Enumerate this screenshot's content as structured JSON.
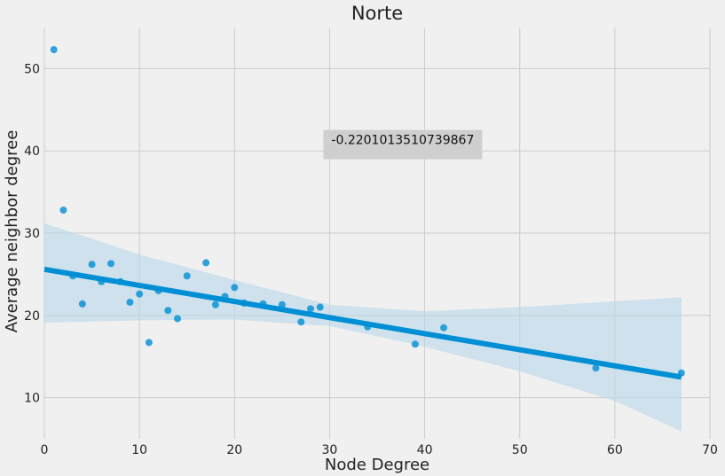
{
  "chart_data": {
    "type": "scatter",
    "title": "Norte",
    "xlabel": "Node Degree",
    "ylabel": "Average neighbor degree",
    "xlim": [
      0,
      70
    ],
    "ylim": [
      5,
      55
    ],
    "xticks": [
      "0",
      "10",
      "20",
      "30",
      "40",
      "50",
      "60",
      "70"
    ],
    "yticks": [
      "10",
      "20",
      "30",
      "40",
      "50"
    ],
    "grid": true,
    "legend": "none",
    "colors": {
      "background": "#f0f0f0",
      "grid": "#cbcbcb",
      "points": "#008fd5",
      "line": "#008fd5",
      "band": "#b8d7ea",
      "annotation_box": "#cfcfcf"
    },
    "points": [
      [
        1,
        52.3
      ],
      [
        2,
        32.8
      ],
      [
        3,
        24.8
      ],
      [
        4,
        21.4
      ],
      [
        5,
        26.2
      ],
      [
        6,
        24.1
      ],
      [
        7,
        26.3
      ],
      [
        8,
        24.1
      ],
      [
        9,
        21.6
      ],
      [
        10,
        22.6
      ],
      [
        11,
        16.7
      ],
      [
        12,
        23.0
      ],
      [
        13,
        20.6
      ],
      [
        14,
        19.6
      ],
      [
        15,
        24.8
      ],
      [
        17,
        26.4
      ],
      [
        18,
        21.3
      ],
      [
        19,
        22.3
      ],
      [
        20,
        23.4
      ],
      [
        21,
        21.5
      ],
      [
        23,
        21.4
      ],
      [
        25,
        21.3
      ],
      [
        27,
        19.2
      ],
      [
        28,
        20.8
      ],
      [
        29,
        21.0
      ],
      [
        34,
        18.6
      ],
      [
        39,
        16.5
      ],
      [
        42,
        18.5
      ],
      [
        58,
        13.6
      ],
      [
        67,
        13.0
      ]
    ],
    "regression": {
      "x": [
        0,
        67
      ],
      "y": [
        25.6,
        12.5
      ]
    },
    "ci_band": {
      "x": [
        0,
        10,
        20,
        30,
        40,
        50,
        60,
        67
      ],
      "lower": [
        19.1,
        19.4,
        19.5,
        18.7,
        16.2,
        13.2,
        9.6,
        5.9
      ],
      "upper": [
        31.2,
        27.4,
        24.3,
        21.3,
        20.5,
        21.0,
        21.7,
        22.2
      ]
    },
    "annotation": {
      "text": "-0.2201013510739867",
      "x": 30,
      "y": 40.5
    }
  }
}
